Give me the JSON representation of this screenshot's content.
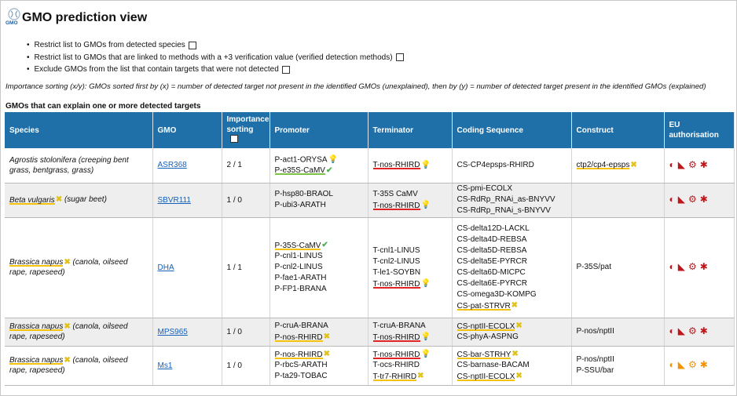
{
  "app": {
    "logo_text": "GMO",
    "title": "GMO prediction view"
  },
  "options": [
    {
      "label": "Restrict list to GMOs from detected species",
      "checked": false
    },
    {
      "label": "Restrict list to GMOs that are linked to methods with a +3 verification value (verified detection methods)",
      "checked": false
    },
    {
      "label": "Exclude GMOs from the list that contain targets that were not detected",
      "checked": false
    }
  ],
  "importance_note": "Importance sorting (x/y): GMOs sorted first by (x) = number of detected target not present in the identified GMOs (unexplained), then by (y) = number of detected target present in the identified GMOs (explained)",
  "section_title": "GMOs that can explain one or more detected targets",
  "colors": {
    "header": "#1f6fa8",
    "link": "#1560b8",
    "underline_yellow": "#f4c20d",
    "underline_red": "#e02424",
    "underline_green": "#7cc242"
  },
  "columns": {
    "species": "Species",
    "gmo": "GMO",
    "importance_1": "Importance",
    "importance_2": "sorting",
    "promoter": "Promoter",
    "terminator": "Terminator",
    "coding": "Coding Sequence",
    "construct": "Construct",
    "eu_1": "EU",
    "eu_2": "authorisation"
  },
  "rows": [
    {
      "species_italic": "Agrostis stolonifera (creeping bent grass, bentgrass, grass)",
      "species_rest": "",
      "gmo": "ASR368",
      "sorting": "2 / 1",
      "promoter": [
        {
          "text": "P-act1-ORYSA",
          "icon": "bulb-icon"
        },
        {
          "text": "P-e35S-CaMV",
          "icon": "check-icon",
          "ul": "g"
        }
      ],
      "terminator": [
        {
          "text": "T-nos-RHIRD",
          "icon": "bulb-icon",
          "ul": "r"
        }
      ],
      "coding": [
        {
          "text": "CS-CP4epsps-RHIRD"
        }
      ],
      "construct": [
        {
          "text": "ctp2/cp4-epsps",
          "icon": "cross-icon",
          "ul": "y"
        }
      ],
      "eu_color": "red"
    },
    {
      "species_italic": "Beta vulgaris",
      "species_rest": "(sugar beet)",
      "gmo": "SBVR111",
      "sorting": "1 / 0",
      "promoter": [
        {
          "text": "P-hsp80-BRAOL"
        },
        {
          "text": "P-ubi3-ARATH"
        }
      ],
      "terminator": [
        {
          "text": "T-35S CaMV"
        },
        {
          "text": "T-nos-RHIRD",
          "icon": "bulb-icon",
          "ul": "r"
        }
      ],
      "coding": [
        {
          "text": "CS-pmi-ECOLX"
        },
        {
          "text": "CS-RdRp_RNAi_as-BNYVV"
        },
        {
          "text": "CS-RdRp_RNAi_s-BNYVV"
        }
      ],
      "construct": [],
      "eu_color": "red"
    },
    {
      "species_italic": "Brassica napus",
      "species_rest": "(canola, oilseed rape, rapeseed)",
      "gmo": "DHA",
      "sorting": "1 / 1",
      "promoter": [
        {
          "text": "P-35S-CaMV",
          "icon": "check-icon",
          "ul": "y"
        },
        {
          "text": "P-cnl1-LINUS"
        },
        {
          "text": "P-cnl2-LINUS"
        },
        {
          "text": "P-fae1-ARATH"
        },
        {
          "text": "P-FP1-BRANA"
        }
      ],
      "terminator": [
        {
          "text": "T-cnl1-LINUS"
        },
        {
          "text": "T-cnl2-LINUS"
        },
        {
          "text": "T-le1-SOYBN"
        },
        {
          "text": "T-nos-RHIRD",
          "icon": "bulb-icon",
          "ul": "r"
        }
      ],
      "coding": [
        {
          "text": "CS-delta12D-LACKL"
        },
        {
          "text": "CS-delta4D-REBSA"
        },
        {
          "text": "CS-delta5D-REBSA"
        },
        {
          "text": "CS-delta5E-PYRCR"
        },
        {
          "text": "CS-delta6D-MICPC"
        },
        {
          "text": "CS-delta6E-PYRCR"
        },
        {
          "text": "CS-omega3D-KOMPG"
        },
        {
          "text": "CS-pat-STRVR",
          "icon": "cross-icon",
          "ul": "y"
        }
      ],
      "construct": [
        {
          "text": "P-35S/pat"
        }
      ],
      "eu_color": "red"
    },
    {
      "species_italic": "Brassica napus",
      "species_rest": "(canola, oilseed rape, rapeseed)",
      "gmo": "MPS965",
      "sorting": "1 / 0",
      "promoter": [
        {
          "text": "P-cruA-BRANA"
        },
        {
          "text": "P-nos-RHIRD",
          "icon": "cross-icon",
          "ul": "y"
        }
      ],
      "terminator": [
        {
          "text": "T-cruA-BRANA"
        },
        {
          "text": "T-nos-RHIRD",
          "icon": "bulb-icon",
          "ul": "r"
        }
      ],
      "coding": [
        {
          "text": "CS-nptII-ECOLX",
          "icon": "cross-icon",
          "ul": "y"
        },
        {
          "text": "CS-phyA-ASPNG"
        }
      ],
      "construct": [
        {
          "text": "P-nos/nptII"
        }
      ],
      "eu_color": "red"
    },
    {
      "species_italic": "Brassica napus",
      "species_rest": "(canola, oilseed rape, rapeseed)",
      "gmo": "Ms1",
      "sorting": "1 / 0",
      "promoter": [
        {
          "text": "P-nos-RHIRD",
          "icon": "cross-icon",
          "ul": "y"
        },
        {
          "text": "P-rbcS-ARATH"
        },
        {
          "text": "P-ta29-TOBAC"
        }
      ],
      "terminator": [
        {
          "text": "T-nos-RHIRD",
          "icon": "bulb-icon",
          "ul": "r"
        },
        {
          "text": "T-ocs-RHIRD"
        },
        {
          "text": "T-tr7-RHIRD",
          "icon": "cross-icon",
          "ul": "y"
        }
      ],
      "coding": [
        {
          "text": "CS-bar-STRHY",
          "icon": "cross-icon",
          "ul": "y"
        },
        {
          "text": "CS-barnase-BACAM"
        },
        {
          "text": "CS-nptII-ECOLX",
          "icon": "cross-icon",
          "ul": "y"
        }
      ],
      "construct": [
        {
          "text": "P-nos/nptII"
        },
        {
          "text": "P-SSU/bar"
        }
      ],
      "eu_color": "orange"
    }
  ]
}
